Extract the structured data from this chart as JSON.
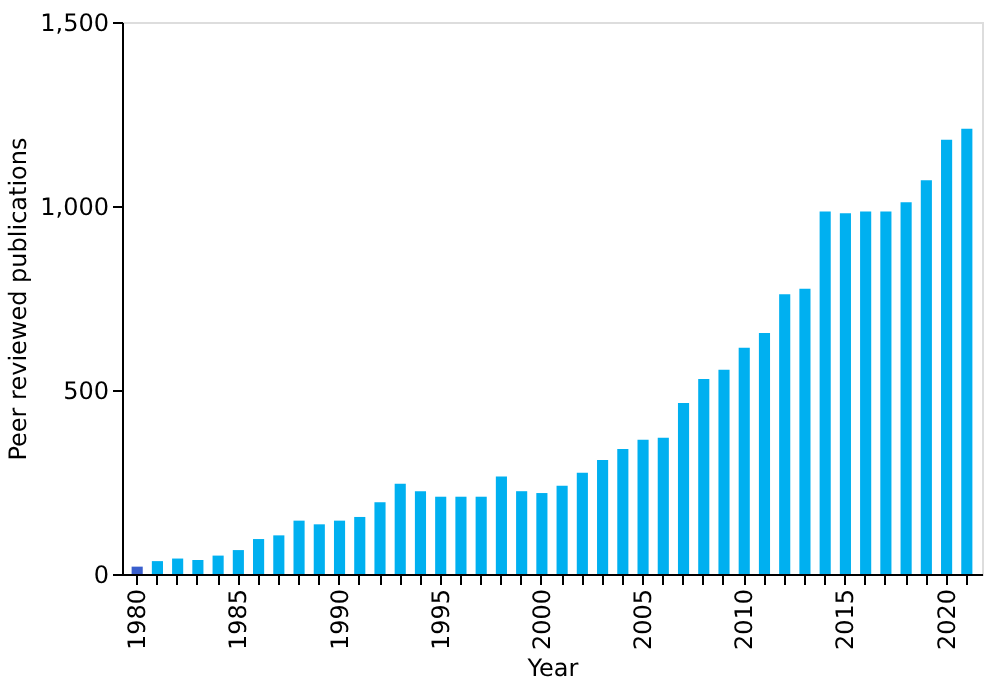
{
  "chart_data": {
    "type": "bar",
    "xlabel": "Year",
    "ylabel": "Peer reviewed publications",
    "categories": [
      "1980",
      null,
      null,
      null,
      null,
      "1985",
      null,
      null,
      null,
      null,
      "1990",
      null,
      null,
      null,
      null,
      "1995",
      null,
      null,
      null,
      null,
      "2000",
      null,
      null,
      null,
      null,
      "2005",
      null,
      null,
      null,
      null,
      "2010",
      null,
      null,
      null,
      null,
      "2015",
      null,
      null,
      null,
      null,
      "2020",
      null
    ],
    "values": [
      20,
      35,
      42,
      38,
      50,
      65,
      95,
      105,
      145,
      135,
      145,
      155,
      195,
      245,
      225,
      210,
      210,
      210,
      265,
      225,
      220,
      240,
      275,
      310,
      340,
      365,
      370,
      465,
      530,
      555,
      615,
      655,
      760,
      775,
      985,
      980,
      985,
      985,
      1010,
      1070,
      1180,
      1210
    ],
    "colors": [
      "#3a5fcd",
      "#00b0f0",
      "#00b0f0",
      "#00b0f0",
      "#00b0f0",
      "#00b0f0",
      "#00b0f0",
      "#00b0f0",
      "#00b0f0",
      "#00b0f0",
      "#00b0f0",
      "#00b0f0",
      "#00b0f0",
      "#00b0f0",
      "#00b0f0",
      "#00b0f0",
      "#00b0f0",
      "#00b0f0",
      "#00b0f0",
      "#00b0f0",
      "#00b0f0",
      "#00b0f0",
      "#00b0f0",
      "#00b0f0",
      "#00b0f0",
      "#00b0f0",
      "#00b0f0",
      "#00b0f0",
      "#00b0f0",
      "#00b0f0",
      "#00b0f0",
      "#00b0f0",
      "#00b0f0",
      "#00b0f0",
      "#00b0f0",
      "#00b0f0",
      "#00b0f0",
      "#00b0f0",
      "#00b0f0",
      "#00b0f0",
      "#00b0f0",
      "#00b0f0"
    ],
    "ylim": [
      0,
      1500
    ],
    "yticks": [
      0,
      {
        "value": 500,
        "label": "500"
      },
      {
        "value": 1000,
        "label": "1,000"
      },
      {
        "value": 1500,
        "label": "1,500"
      }
    ],
    "grid": false
  }
}
